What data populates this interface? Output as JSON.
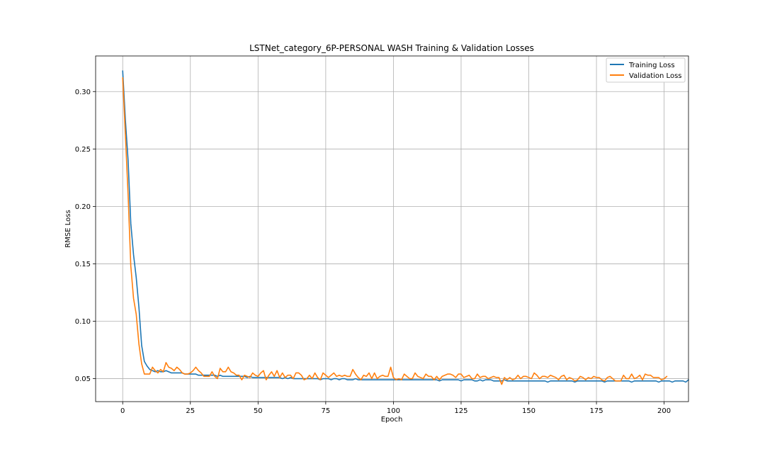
{
  "chart_data": {
    "type": "line",
    "title": "LSTNet_category_6P-PERSONAL WASH Training & Validation Losses",
    "xlabel": "Epoch",
    "ylabel": "RMSE Loss",
    "xlim": [
      -10,
      209
    ],
    "ylim": [
      0.03,
      0.331
    ],
    "xticks": [
      0,
      25,
      50,
      75,
      100,
      125,
      150,
      175,
      200
    ],
    "yticks": [
      0.05,
      0.1,
      0.15,
      0.2,
      0.25,
      0.3
    ],
    "ytick_labels": [
      "0.05",
      "0.10",
      "0.15",
      "0.20",
      "0.25",
      "0.30"
    ],
    "grid": true,
    "legend_position": "upper right",
    "series": [
      {
        "name": "Training Loss",
        "color": "#1f77b4",
        "values": [
          0.318,
          0.275,
          0.24,
          0.185,
          0.158,
          0.138,
          0.112,
          0.079,
          0.065,
          0.061,
          0.058,
          0.057,
          0.056,
          0.057,
          0.056,
          0.056,
          0.057,
          0.056,
          0.055,
          0.055,
          0.055,
          0.055,
          0.055,
          0.054,
          0.054,
          0.054,
          0.054,
          0.054,
          0.053,
          0.053,
          0.053,
          0.053,
          0.053,
          0.053,
          0.053,
          0.052,
          0.053,
          0.052,
          0.052,
          0.052,
          0.052,
          0.052,
          0.052,
          0.052,
          0.052,
          0.052,
          0.051,
          0.052,
          0.051,
          0.051,
          0.051,
          0.051,
          0.051,
          0.051,
          0.051,
          0.051,
          0.051,
          0.051,
          0.051,
          0.05,
          0.051,
          0.05,
          0.051,
          0.05,
          0.05,
          0.05,
          0.05,
          0.05,
          0.05,
          0.05,
          0.05,
          0.05,
          0.05,
          0.049,
          0.05,
          0.05,
          0.05,
          0.049,
          0.05,
          0.05,
          0.049,
          0.05,
          0.05,
          0.049,
          0.049,
          0.049,
          0.05,
          0.049,
          0.049,
          0.049,
          0.049,
          0.049,
          0.049,
          0.049,
          0.049,
          0.049,
          0.049,
          0.049,
          0.049,
          0.049,
          0.049,
          0.049,
          0.049,
          0.049,
          0.049,
          0.049,
          0.049,
          0.049,
          0.049,
          0.049,
          0.049,
          0.049,
          0.049,
          0.049,
          0.049,
          0.049,
          0.049,
          0.048,
          0.049,
          0.049,
          0.049,
          0.049,
          0.049,
          0.049,
          0.049,
          0.048,
          0.049,
          0.049,
          0.049,
          0.049,
          0.048,
          0.048,
          0.049,
          0.048,
          0.049,
          0.049,
          0.049,
          0.048,
          0.048,
          0.048,
          0.048,
          0.049,
          0.048,
          0.048,
          0.048,
          0.048,
          0.048,
          0.048,
          0.048,
          0.048,
          0.048,
          0.048,
          0.048,
          0.048,
          0.048,
          0.048,
          0.048,
          0.047,
          0.048,
          0.048,
          0.048,
          0.048,
          0.048,
          0.048,
          0.048,
          0.048,
          0.048,
          0.047,
          0.048,
          0.048,
          0.048,
          0.048,
          0.048,
          0.048,
          0.048,
          0.048,
          0.048,
          0.048,
          0.047,
          0.048,
          0.048,
          0.048,
          0.048,
          0.048,
          0.048,
          0.048,
          0.048,
          0.048,
          0.047,
          0.048,
          0.048,
          0.048,
          0.048,
          0.048,
          0.048,
          0.048,
          0.048,
          0.048,
          0.047,
          0.048,
          0.048,
          0.048,
          0.048,
          0.047,
          0.048,
          0.048,
          0.048,
          0.048,
          0.047,
          0.049
        ]
      },
      {
        "name": "Validation Loss",
        "color": "#ff7f0e",
        "values": [
          0.312,
          0.262,
          0.21,
          0.148,
          0.12,
          0.106,
          0.08,
          0.063,
          0.054,
          0.054,
          0.054,
          0.06,
          0.057,
          0.055,
          0.058,
          0.056,
          0.064,
          0.06,
          0.059,
          0.057,
          0.06,
          0.058,
          0.055,
          0.054,
          0.054,
          0.055,
          0.057,
          0.06,
          0.057,
          0.055,
          0.052,
          0.052,
          0.052,
          0.056,
          0.052,
          0.05,
          0.059,
          0.056,
          0.056,
          0.06,
          0.056,
          0.055,
          0.053,
          0.053,
          0.049,
          0.053,
          0.052,
          0.051,
          0.055,
          0.053,
          0.052,
          0.055,
          0.057,
          0.049,
          0.053,
          0.056,
          0.052,
          0.057,
          0.051,
          0.055,
          0.051,
          0.053,
          0.053,
          0.05,
          0.055,
          0.055,
          0.053,
          0.049,
          0.05,
          0.053,
          0.05,
          0.055,
          0.051,
          0.049,
          0.055,
          0.053,
          0.051,
          0.053,
          0.055,
          0.052,
          0.053,
          0.052,
          0.053,
          0.052,
          0.052,
          0.058,
          0.054,
          0.051,
          0.049,
          0.053,
          0.052,
          0.055,
          0.05,
          0.055,
          0.05,
          0.052,
          0.053,
          0.052,
          0.052,
          0.06,
          0.051,
          0.049,
          0.05,
          0.049,
          0.054,
          0.052,
          0.05,
          0.05,
          0.055,
          0.052,
          0.051,
          0.05,
          0.054,
          0.052,
          0.052,
          0.049,
          0.052,
          0.049,
          0.052,
          0.053,
          0.054,
          0.054,
          0.053,
          0.051,
          0.054,
          0.054,
          0.051,
          0.052,
          0.053,
          0.05,
          0.05,
          0.054,
          0.051,
          0.052,
          0.052,
          0.05,
          0.051,
          0.052,
          0.051,
          0.051,
          0.045,
          0.051,
          0.049,
          0.051,
          0.049,
          0.05,
          0.053,
          0.05,
          0.052,
          0.052,
          0.051,
          0.05,
          0.055,
          0.053,
          0.05,
          0.052,
          0.052,
          0.051,
          0.053,
          0.052,
          0.051,
          0.049,
          0.052,
          0.053,
          0.049,
          0.051,
          0.05,
          0.048,
          0.049,
          0.052,
          0.051,
          0.049,
          0.051,
          0.05,
          0.052,
          0.051,
          0.051,
          0.049,
          0.048,
          0.051,
          0.052,
          0.05,
          0.048,
          0.048,
          0.048,
          0.053,
          0.05,
          0.05,
          0.054,
          0.05,
          0.051,
          0.053,
          0.049,
          0.054,
          0.053,
          0.053,
          0.051,
          0.051,
          0.051,
          0.049,
          0.05,
          0.052
        ]
      }
    ]
  }
}
